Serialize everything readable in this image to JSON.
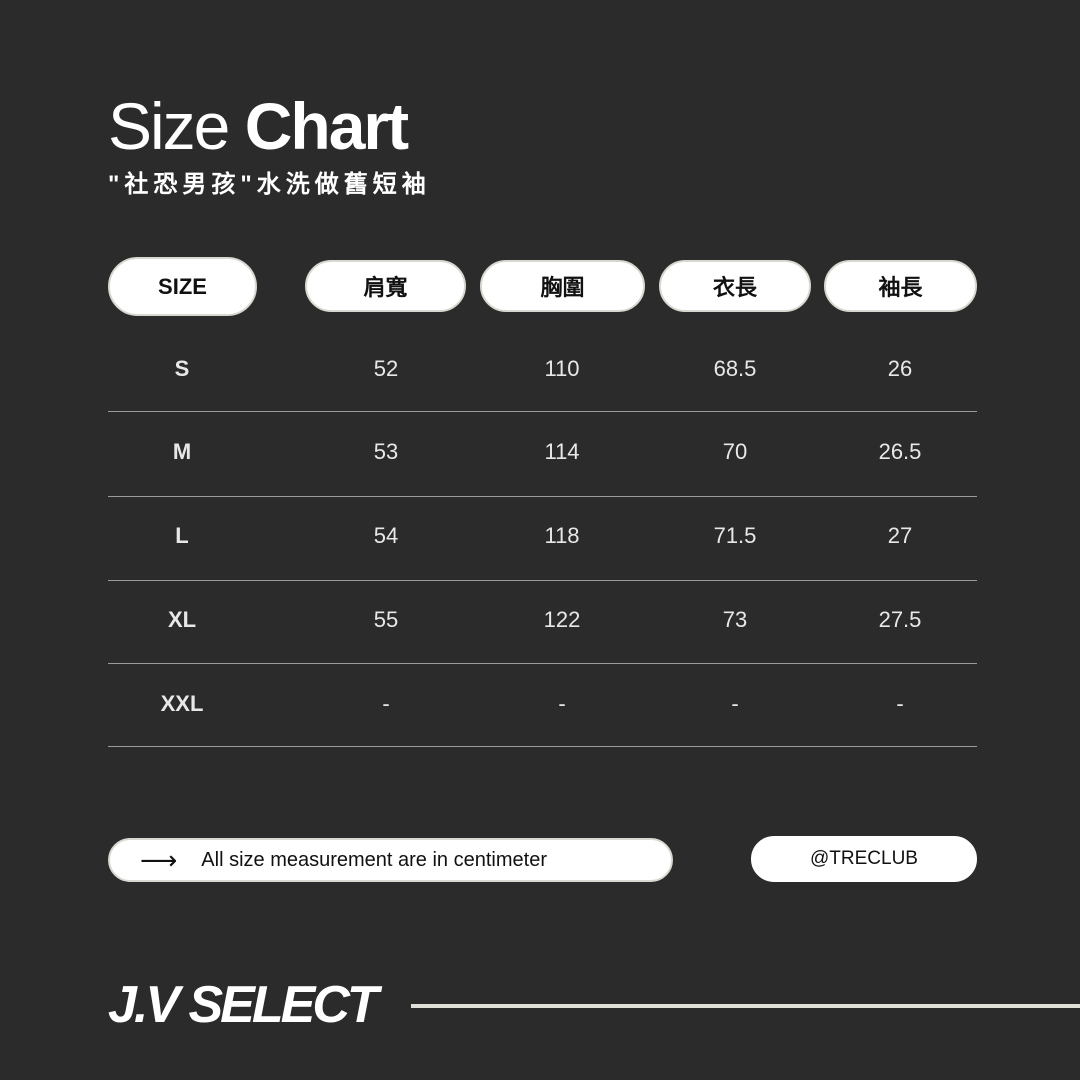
{
  "title": {
    "light": "Size",
    "bold": "Chart"
  },
  "subtitle": "\"社恐男孩\"水洗做舊短袖",
  "table": {
    "headers": [
      "SIZE",
      "肩寬",
      "胸圍",
      "衣長",
      "袖長"
    ],
    "rows": [
      [
        "S",
        "52",
        "110",
        "68.5",
        "26"
      ],
      [
        "M",
        "53",
        "114",
        "70",
        "26.5"
      ],
      [
        "L",
        "54",
        "118",
        "71.5",
        "27"
      ],
      [
        "XL",
        "55",
        "122",
        "73",
        "27.5"
      ],
      [
        "XXL",
        "-",
        "-",
        "-",
        "-"
      ]
    ]
  },
  "note": {
    "icon": "arrow-right-icon",
    "arrow": "⟶",
    "text": "All size measurement are in centimeter"
  },
  "handle": "@TRECLUB",
  "brand": "J.V SELECT",
  "colors": {
    "background": "#2b2b2b",
    "pill": "#ffffff",
    "text": "#ffffff"
  }
}
